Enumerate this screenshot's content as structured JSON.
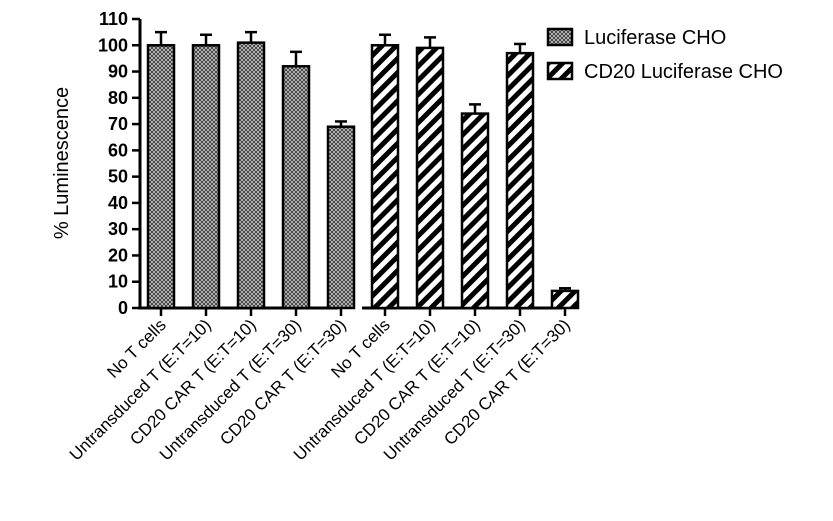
{
  "chart_data": {
    "type": "bar",
    "ylabel": "% Luminescence",
    "xlabel": "",
    "ylim": [
      0,
      110
    ],
    "yticks": [
      0,
      10,
      20,
      30,
      40,
      50,
      60,
      70,
      80,
      90,
      100,
      110
    ],
    "grid": false,
    "legend_position": "top-right",
    "groups": [
      {
        "series": "Luciferase CHO",
        "pattern": "crosshatch",
        "categories": [
          "No T cells",
          "Untransduced T (E:T=10)",
          "CD20 CAR T (E:T=10)",
          "Untransduced T (E:T=30)",
          "CD20 CAR T (E:T=30)"
        ],
        "values": [
          100,
          100,
          101,
          92,
          69
        ],
        "errors": [
          5,
          4,
          4,
          5.5,
          2
        ]
      },
      {
        "series": "CD20 Luciferase CHO",
        "pattern": "diagonal",
        "categories": [
          "No T cells",
          "Untransduced T (E:T=10)",
          "CD20 CAR T (E:T=10)",
          "Untransduced T (E:T=30)",
          "CD20 CAR T (E:T=30)"
        ],
        "values": [
          100,
          99,
          74,
          97,
          6.5
        ],
        "errors": [
          4,
          4,
          3.5,
          3.5,
          1
        ]
      }
    ],
    "legend": [
      {
        "name": "Luciferase CHO",
        "pattern": "crosshatch"
      },
      {
        "name": "CD20 Luciferase CHO",
        "pattern": "diagonal"
      }
    ]
  }
}
